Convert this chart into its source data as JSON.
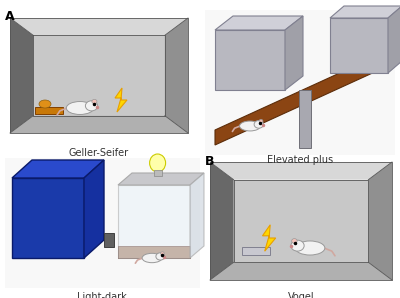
{
  "fig_width": 4.0,
  "fig_height": 2.98,
  "dpi": 100,
  "background": "#ffffff",
  "label_A": "A",
  "label_B": "B",
  "caption_geller": "Geller-Seifer",
  "caption_elevated": "Elevated plus",
  "caption_lightdark": "Light-dark",
  "caption_vogel": "Vogel",
  "wall_back": "#c8c8c8",
  "wall_left": "#707070",
  "wall_right": "#909090",
  "wall_floor": "#b0b0b0",
  "wall_ceil": "#d8d8d8",
  "lightning_fill": "#FFD700",
  "lightning_edge": "#e8a000",
  "brown_plank": "#8B4513",
  "brown_plank_dark": "#5c2d0a",
  "steel_gray": "#a8a8b0",
  "steel_dark": "#707078",
  "blue_box": "#1a3aaa",
  "blue_box_dark": "#0a1a6a",
  "blue_top": "#2a4acc",
  "mouse_body": "#f2f2f2",
  "mouse_edge": "#999999",
  "mouse_ear": "#f0c0b8",
  "mouse_tail": "#d0a8a0",
  "food_pad": "#c87808",
  "food_item": "#e09018",
  "lamp_fill": "#ffffaa",
  "lamp_edge": "#cccc00",
  "glass_fill": "#e8f2f8",
  "glass_edge": "#aaaaaa",
  "floor_brown": "#9b6b4b"
}
